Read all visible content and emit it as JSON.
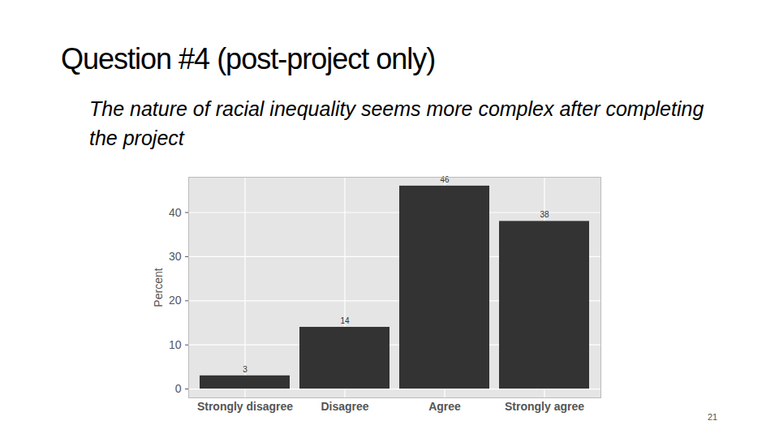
{
  "chart_data": {
    "type": "bar",
    "title": "Question #4 (post-project only)",
    "subtitle": "The nature of racial inequality seems more complex after completing the project",
    "footer": "21",
    "y_label": "Percent",
    "categories": [
      "Strongly disagree",
      "Disagree",
      "Agree",
      "Strongly agree"
    ],
    "values": [
      3,
      14,
      46,
      38
    ],
    "color": "#333333",
    "ylim": [
      -2,
      48
    ],
    "yticks": [
      0,
      10,
      20,
      30,
      40
    ],
    "grid": true,
    "data_labels": true
  }
}
